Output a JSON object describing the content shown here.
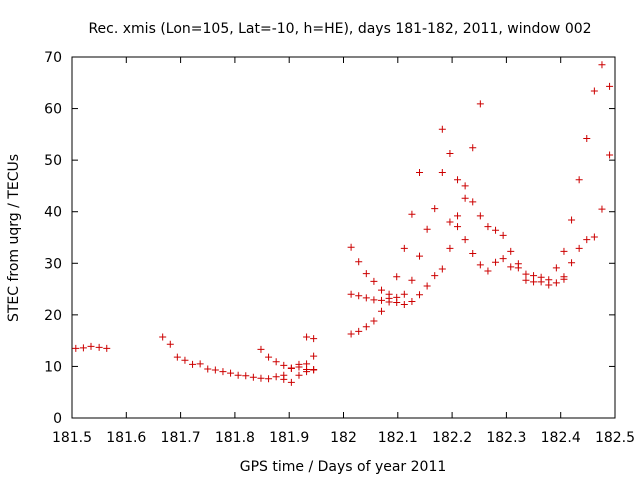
{
  "chart_data": {
    "type": "scatter",
    "title": "Rec. xmis (Lon=105, Lat=-10, h=HE), days 181-182, 2011, window 002",
    "xlabel": "GPS time / Days of year 2011",
    "ylabel": "STEC from uqrg / TECUs",
    "xlim": [
      181.5,
      182.5
    ],
    "ylim": [
      0,
      70
    ],
    "xticks": [
      181.5,
      181.6,
      181.7,
      181.8,
      181.9,
      182,
      182.1,
      182.2,
      182.3,
      182.4,
      182.5
    ],
    "xtick_labels": [
      "181.5",
      "181.6",
      "181.7",
      "181.8",
      "181.9",
      "182",
      "182.1",
      "182.2",
      "182.3",
      "182.4",
      "182.5"
    ],
    "yticks": [
      0,
      10,
      20,
      30,
      40,
      50,
      60,
      70
    ],
    "ytick_labels": [
      "0",
      "10",
      "20",
      "30",
      "40",
      "50",
      "60",
      "70"
    ],
    "grid": false,
    "marker": "plus",
    "color": "#cc0000",
    "points": [
      [
        181.507,
        13.5
      ],
      [
        181.521,
        13.6
      ],
      [
        181.535,
        13.9
      ],
      [
        181.55,
        13.7
      ],
      [
        181.564,
        13.5
      ],
      [
        181.667,
        15.7
      ],
      [
        181.681,
        14.3
      ],
      [
        181.694,
        11.8
      ],
      [
        181.708,
        11.2
      ],
      [
        181.722,
        10.4
      ],
      [
        181.736,
        10.5
      ],
      [
        181.75,
        9.5
      ],
      [
        181.764,
        9.3
      ],
      [
        181.778,
        9.0
      ],
      [
        181.792,
        8.7
      ],
      [
        181.806,
        8.3
      ],
      [
        181.82,
        8.2
      ],
      [
        181.834,
        7.9
      ],
      [
        181.848,
        7.7
      ],
      [
        181.862,
        7.6
      ],
      [
        181.876,
        8.0
      ],
      [
        181.89,
        7.5
      ],
      [
        181.904,
        6.9
      ],
      [
        181.918,
        8.3
      ],
      [
        181.932,
        9.0
      ],
      [
        181.945,
        9.3
      ],
      [
        181.848,
        13.3
      ],
      [
        181.862,
        11.8
      ],
      [
        181.876,
        10.9
      ],
      [
        181.89,
        10.2
      ],
      [
        181.904,
        9.7
      ],
      [
        181.918,
        9.9
      ],
      [
        181.932,
        10.5
      ],
      [
        181.945,
        12.0
      ],
      [
        181.89,
        8.3
      ],
      [
        181.904,
        9.6
      ],
      [
        181.918,
        10.4
      ],
      [
        181.932,
        15.7
      ],
      [
        181.945,
        15.4
      ],
      [
        181.932,
        9.4
      ],
      [
        181.945,
        9.4
      ],
      [
        182.014,
        16.3
      ],
      [
        182.028,
        16.8
      ],
      [
        182.042,
        17.7
      ],
      [
        182.056,
        18.8
      ],
      [
        182.07,
        20.7
      ],
      [
        182.084,
        22.5
      ],
      [
        182.098,
        22.4
      ],
      [
        182.112,
        22.0
      ],
      [
        182.126,
        22.6
      ],
      [
        182.14,
        23.9
      ],
      [
        182.154,
        25.6
      ],
      [
        182.168,
        27.6
      ],
      [
        182.182,
        28.9
      ],
      [
        182.196,
        32.9
      ],
      [
        182.21,
        37.1
      ],
      [
        182.224,
        42.6
      ],
      [
        182.238,
        52.4
      ],
      [
        182.252,
        60.9
      ],
      [
        182.014,
        24.0
      ],
      [
        182.028,
        23.7
      ],
      [
        182.042,
        23.3
      ],
      [
        182.056,
        22.9
      ],
      [
        182.07,
        22.8
      ],
      [
        182.084,
        23.2
      ],
      [
        182.098,
        23.4
      ],
      [
        182.112,
        24.0
      ],
      [
        182.126,
        26.7
      ],
      [
        182.14,
        31.4
      ],
      [
        182.154,
        36.6
      ],
      [
        182.168,
        40.6
      ],
      [
        182.182,
        47.6
      ],
      [
        182.182,
        56.0
      ],
      [
        182.196,
        51.3
      ],
      [
        182.21,
        46.2
      ],
      [
        182.224,
        45.0
      ],
      [
        182.238,
        41.9
      ],
      [
        182.252,
        39.2
      ],
      [
        182.266,
        37.1
      ],
      [
        182.28,
        36.4
      ],
      [
        182.294,
        35.4
      ],
      [
        182.308,
        32.3
      ],
      [
        182.322,
        29.9
      ],
      [
        182.336,
        27.9
      ],
      [
        182.35,
        27.6
      ],
      [
        182.364,
        27.3
      ],
      [
        182.378,
        26.8
      ],
      [
        182.392,
        26.2
      ],
      [
        182.406,
        26.9
      ],
      [
        182.014,
        33.1
      ],
      [
        182.028,
        30.3
      ],
      [
        182.042,
        28.0
      ],
      [
        182.056,
        26.5
      ],
      [
        182.07,
        24.8
      ],
      [
        182.084,
        24.0
      ],
      [
        182.098,
        27.4
      ],
      [
        182.112,
        32.9
      ],
      [
        182.126,
        39.5
      ],
      [
        182.14,
        47.6
      ],
      [
        182.196,
        38.0
      ],
      [
        182.21,
        39.2
      ],
      [
        182.224,
        34.6
      ],
      [
        182.238,
        31.9
      ],
      [
        182.252,
        29.7
      ],
      [
        182.266,
        28.5
      ],
      [
        182.28,
        30.2
      ],
      [
        182.294,
        30.9
      ],
      [
        182.308,
        29.3
      ],
      [
        182.322,
        29.1
      ],
      [
        182.336,
        26.7
      ],
      [
        182.35,
        26.4
      ],
      [
        182.364,
        26.4
      ],
      [
        182.378,
        25.8
      ],
      [
        182.392,
        29.1
      ],
      [
        182.406,
        32.3
      ],
      [
        182.42,
        38.4
      ],
      [
        182.434,
        46.2
      ],
      [
        182.448,
        54.2
      ],
      [
        182.462,
        63.4
      ],
      [
        182.476,
        68.5
      ],
      [
        182.49,
        64.3
      ],
      [
        182.49,
        51.0
      ],
      [
        182.476,
        40.5
      ],
      [
        182.462,
        35.1
      ],
      [
        182.448,
        34.6
      ],
      [
        182.434,
        32.9
      ],
      [
        182.42,
        30.1
      ],
      [
        182.406,
        27.4
      ]
    ]
  }
}
